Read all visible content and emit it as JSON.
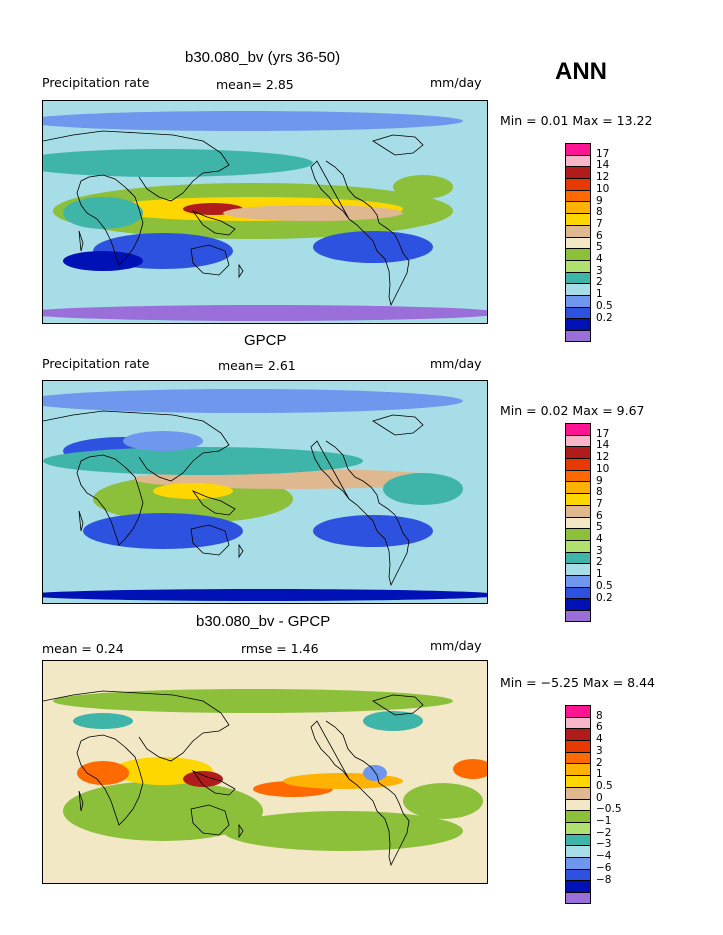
{
  "season": "ANN",
  "colors": {
    "precip_scale": [
      "#9b6fd9",
      "#0012b5",
      "#2e52e0",
      "#6f97ee",
      "#a6dde6",
      "#3fb4a8",
      "#b0e070",
      "#8cbf3a",
      "#f2e8c6",
      "#e0b890",
      "#ffd700",
      "#ffb300",
      "#ff6a00",
      "#e63a00",
      "#b01c1c",
      "#f7b7c8",
      "#ff1493"
    ],
    "diff_scale": [
      "#9b6fd9",
      "#0012b5",
      "#2e52e0",
      "#6f97ee",
      "#a6dde6",
      "#3fb4a8",
      "#b0e070",
      "#8cbf3a",
      "#f2e8c6",
      "#e0b890",
      "#ffd700",
      "#ffb300",
      "#ff6a00",
      "#e63a00",
      "#b01c1c",
      "#f7b7c8",
      "#ff1493"
    ]
  },
  "panels": [
    {
      "title": "b30.080_bv (yrs 36-50)",
      "left_label": "Precipitation rate",
      "center_label": "mean=   2.85",
      "right_label": "mm/day",
      "minmax": "Min =   0.01 Max =  13.22",
      "scale_labels": [
        "17",
        "14",
        "12",
        "10",
        "9",
        "8",
        "7",
        "6",
        "5",
        "4",
        "3",
        "2",
        "1",
        "0.5",
        "0.2"
      ],
      "map_kind": "model"
    },
    {
      "title": "GPCP",
      "left_label": "Precipitation rate",
      "center_label": "mean=   2.61",
      "right_label": "mm/day",
      "minmax": "Min =   0.02 Max =   9.67",
      "scale_labels": [
        "17",
        "14",
        "12",
        "10",
        "9",
        "8",
        "7",
        "6",
        "5",
        "4",
        "3",
        "2",
        "1",
        "0.5",
        "0.2"
      ],
      "map_kind": "obs"
    },
    {
      "title": "b30.080_bv - GPCP",
      "left_label": "mean =   0.24",
      "center_label": "rmse =   1.46",
      "right_label": "mm/day",
      "minmax": "Min =  −5.25 Max =   8.44",
      "scale_labels": [
        "8",
        "6",
        "4",
        "3",
        "2",
        "1",
        "0.5",
        "0",
        "−0.5",
        "−1",
        "−2",
        "−3",
        "−4",
        "−6",
        "−8"
      ],
      "map_kind": "diff"
    }
  ]
}
